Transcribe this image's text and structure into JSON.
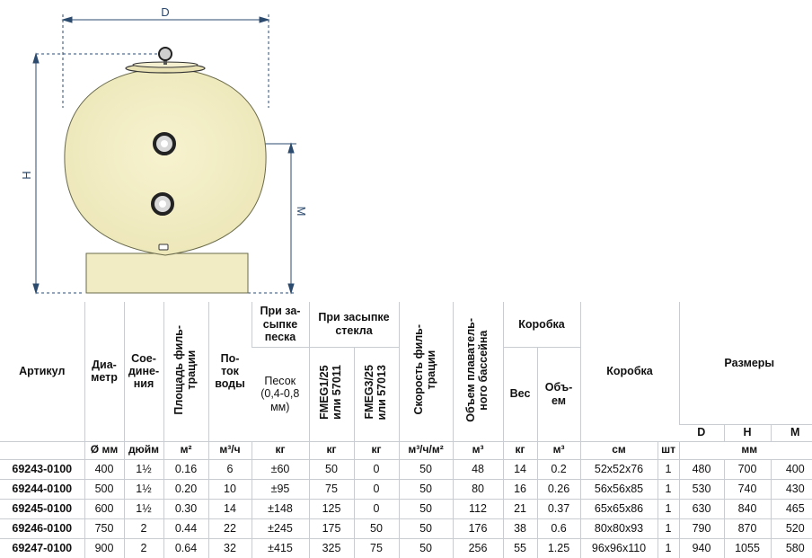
{
  "drawing": {
    "dim_d": "D",
    "dim_h": "H",
    "dim_m": "M"
  },
  "table": {
    "headers": {
      "article": "Артикул",
      "diameter": "Диа-\nметр",
      "connection": "Сое-\nдине-\nния",
      "area": "Площадь филь-\nтрации",
      "flow": "По-\nток\nводы",
      "sand_group": "При за-\nсыпке\nпеска",
      "sand": "Песок\n(0,4-0,8\nмм)",
      "glass_group": "При засыпке\nстекла",
      "fmeg1": "FMEG1/25\nили 57011",
      "fmeg3": "FMEG3/25\nили 57013",
      "speed": "Скорость филь-\nтрации",
      "pool_volume": "Объем плаватель-\nного бассейна",
      "box_group": "Коробка",
      "weight": "Вес",
      "box_volume": "Объ-\nем",
      "box": "Коробка",
      "sizes": "Размеры",
      "d": "D",
      "h": "H",
      "m": "M"
    },
    "units": {
      "diameter": "Ø мм",
      "connection": "дюйм",
      "area": "м²",
      "flow": "м³/ч",
      "sand": "кг",
      "fmeg1": "кг",
      "fmeg3": "кг",
      "speed": "м³/ч/м²",
      "pool_volume": "м³",
      "weight": "кг",
      "box_volume": "м³",
      "box_size": "см",
      "pcs": "шт",
      "sizes": "мм"
    },
    "rows": [
      [
        "69243-0100",
        "400",
        "1½",
        "0.16",
        "6",
        "±60",
        "50",
        "0",
        "50",
        "48",
        "14",
        "0.2",
        "52x52x76",
        "1",
        "480",
        "700",
        "400"
      ],
      [
        "69244-0100",
        "500",
        "1½",
        "0.20",
        "10",
        "±95",
        "75",
        "0",
        "50",
        "80",
        "16",
        "0.26",
        "56x56x85",
        "1",
        "530",
        "740",
        "430"
      ],
      [
        "69245-0100",
        "600",
        "1½",
        "0.30",
        "14",
        "±148",
        "125",
        "0",
        "50",
        "112",
        "21",
        "0.37",
        "65x65x86",
        "1",
        "630",
        "840",
        "465"
      ],
      [
        "69246-0100",
        "750",
        "2",
        "0.44",
        "22",
        "±245",
        "175",
        "50",
        "50",
        "176",
        "38",
        "0.6",
        "80x80x93",
        "1",
        "790",
        "870",
        "520"
      ],
      [
        "69247-0100",
        "900",
        "2",
        "0.64",
        "32",
        "±415",
        "325",
        "75",
        "50",
        "256",
        "55",
        "1.25",
        "96x96x110",
        "1",
        "940",
        "1055",
        "580"
      ]
    ]
  }
}
